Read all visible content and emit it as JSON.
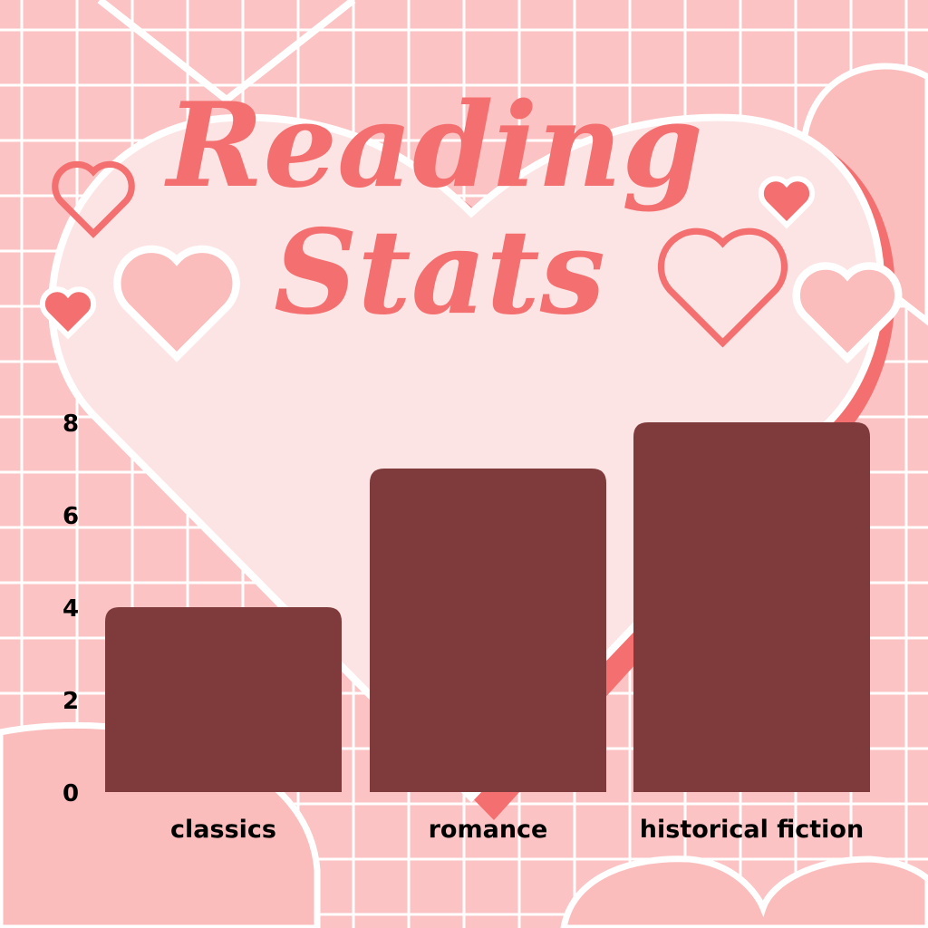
{
  "title": {
    "line1": "Reading",
    "line2": "Stats"
  },
  "colors": {
    "background": "#fbc3c3",
    "grid": "#ffffff",
    "bar": "#7f3b3b",
    "title": "#f47070",
    "heart_fill": "#fde4e4",
    "heart_accent": "#f47070"
  },
  "chart_data": {
    "type": "bar",
    "title": "Reading Stats",
    "categories": [
      "classics",
      "romance",
      "historical fiction"
    ],
    "values": [
      4,
      7,
      8
    ],
    "yticks": [
      "0",
      "2",
      "4",
      "6",
      "8"
    ],
    "ylim": [
      0,
      8
    ],
    "xlabel": "",
    "ylabel": "",
    "grid": false,
    "legend": "none"
  }
}
